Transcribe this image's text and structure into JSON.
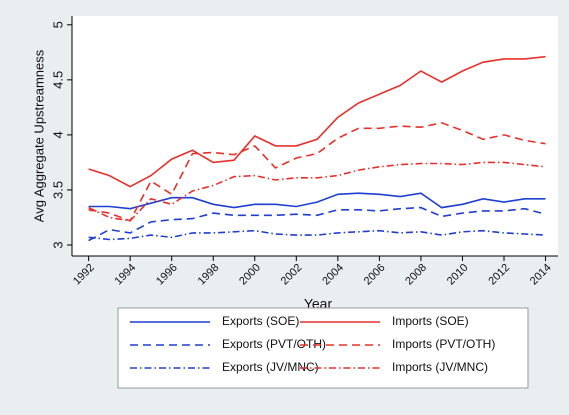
{
  "chart_data": {
    "type": "line",
    "x_label": "Year",
    "y_label": "Avg Aggregate Upstreamness",
    "x": [
      1992,
      1993,
      1994,
      1995,
      1996,
      1997,
      1998,
      1999,
      2000,
      2001,
      2002,
      2003,
      2004,
      2005,
      2006,
      2007,
      2008,
      2009,
      2010,
      2011,
      2012,
      2013,
      2014
    ],
    "xlim": [
      1991.2,
      2014.6
    ],
    "xticks": [
      1992,
      1994,
      1996,
      1998,
      2000,
      2002,
      2004,
      2006,
      2008,
      2010,
      2012,
      2014
    ],
    "ylim": [
      2.9,
      5.08
    ],
    "yticks": [
      3,
      3.5,
      4,
      4.5,
      5
    ],
    "series": [
      {
        "name": "Exports (SOE)",
        "color": "#1f3fd0",
        "style": "solid",
        "values": [
          3.35,
          3.35,
          3.33,
          3.38,
          3.43,
          3.43,
          3.37,
          3.34,
          3.37,
          3.37,
          3.35,
          3.39,
          3.46,
          3.47,
          3.46,
          3.44,
          3.47,
          3.34,
          3.37,
          3.42,
          3.39,
          3.42,
          3.42
        ]
      },
      {
        "name": "Imports (SOE)",
        "color": "#e8302a",
        "style": "solid",
        "values": [
          3.69,
          3.63,
          3.53,
          3.63,
          3.78,
          3.86,
          3.75,
          3.77,
          3.99,
          3.9,
          3.9,
          3.96,
          4.16,
          4.29,
          4.37,
          4.45,
          4.58,
          4.48,
          4.58,
          4.66,
          4.69,
          4.69,
          4.71
        ]
      },
      {
        "name": "Exports (PVT/OTH)",
        "color": "#1f3fd0",
        "style": "dash",
        "values": [
          3.04,
          3.14,
          3.11,
          3.21,
          3.23,
          3.24,
          3.29,
          3.27,
          3.27,
          3.27,
          3.28,
          3.27,
          3.32,
          3.32,
          3.31,
          3.33,
          3.34,
          3.26,
          3.29,
          3.31,
          3.31,
          3.33,
          3.28
        ]
      },
      {
        "name": "Imports (PVT/OTH)",
        "color": "#e8302a",
        "style": "dash",
        "values": [
          3.32,
          3.29,
          3.22,
          3.58,
          3.46,
          3.83,
          3.84,
          3.82,
          3.9,
          3.7,
          3.79,
          3.83,
          3.97,
          4.06,
          4.06,
          4.08,
          4.07,
          4.11,
          4.04,
          3.96,
          4.0,
          3.95,
          3.92
        ]
      },
      {
        "name": "Exports (JV/MNC)",
        "color": "#1f3fd0",
        "style": "dashdot",
        "values": [
          3.07,
          3.05,
          3.06,
          3.09,
          3.07,
          3.11,
          3.11,
          3.12,
          3.13,
          3.1,
          3.09,
          3.09,
          3.11,
          3.12,
          3.13,
          3.11,
          3.12,
          3.09,
          3.12,
          3.13,
          3.11,
          3.1,
          3.09
        ]
      },
      {
        "name": "Imports (JV/MNC)",
        "color": "#e8302a",
        "style": "dashdot",
        "values": [
          3.34,
          3.25,
          3.22,
          3.42,
          3.37,
          3.49,
          3.54,
          3.62,
          3.63,
          3.59,
          3.61,
          3.61,
          3.63,
          3.68,
          3.71,
          3.73,
          3.74,
          3.74,
          3.73,
          3.75,
          3.75,
          3.73,
          3.71
        ]
      }
    ]
  }
}
